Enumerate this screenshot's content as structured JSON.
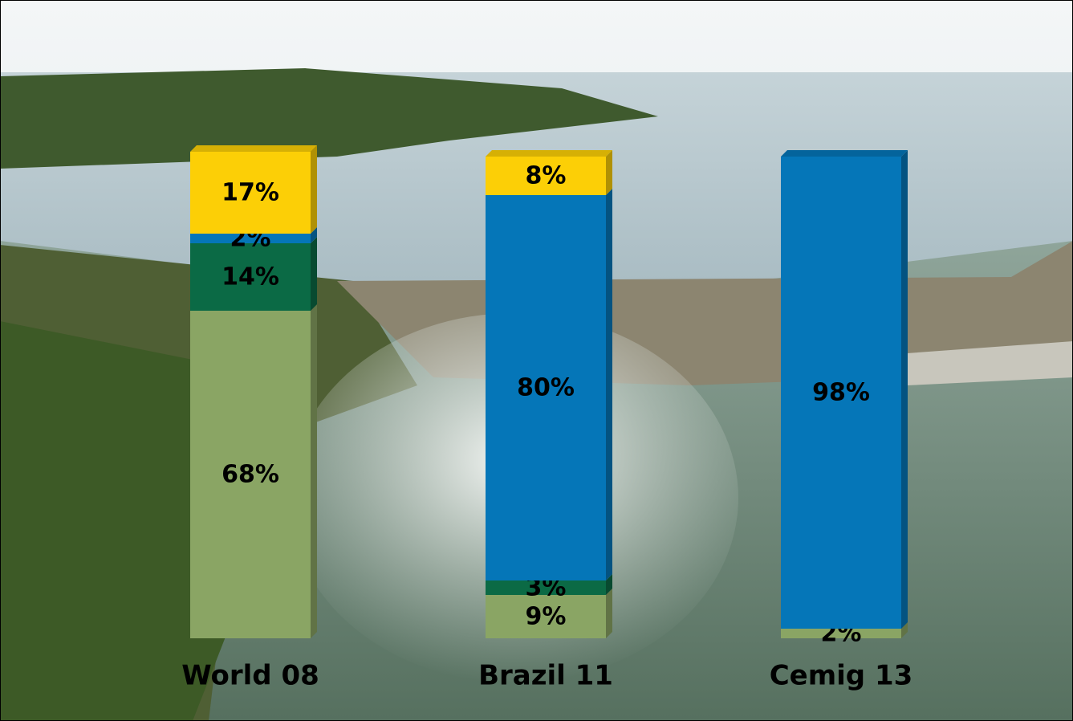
{
  "chart_data": {
    "type": "stacked-bar",
    "categories": [
      "World 08",
      "Brazil 11",
      "Cemig 13"
    ],
    "series": [
      {
        "color": "#8aa564",
        "values": [
          68,
          9,
          2
        ],
        "value_labels": [
          "68%",
          "9%",
          "2%"
        ]
      },
      {
        "color": "#0b6a45",
        "values": [
          14,
          3,
          null
        ],
        "value_labels": [
          "14%",
          "3%",
          null
        ]
      },
      {
        "color": "#0576b8",
        "values": [
          2,
          80,
          98
        ],
        "value_labels": [
          "2%",
          "80%",
          "98%"
        ]
      },
      {
        "color": "#fccf06",
        "values": [
          17,
          8,
          null
        ],
        "value_labels": [
          "17%",
          "8%",
          null
        ]
      }
    ]
  }
}
